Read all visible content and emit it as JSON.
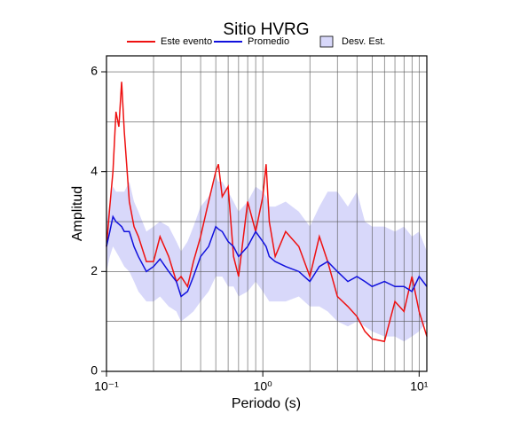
{
  "chart_data": {
    "type": "line",
    "title": "Sitio HVRG",
    "xlabel": "Periodo (s)",
    "ylabel": "Amplitud",
    "xscale": "log",
    "grid": true,
    "legend": "top",
    "xlim": [
      0.1,
      11.2
    ],
    "ylim": [
      0,
      6.32
    ],
    "xticks": [
      {
        "value": 0.1,
        "label": "10⁻¹"
      },
      {
        "value": 1,
        "label": "10⁰"
      },
      {
        "value": 10,
        "label": "10¹"
      }
    ],
    "yticks": [
      0,
      2,
      4,
      6
    ],
    "x": [
      0.1,
      0.105,
      0.11,
      0.115,
      0.12,
      0.125,
      0.13,
      0.14,
      0.15,
      0.16,
      0.18,
      0.2,
      0.22,
      0.25,
      0.28,
      0.3,
      0.33,
      0.36,
      0.4,
      0.45,
      0.5,
      0.52,
      0.55,
      0.6,
      0.65,
      0.7,
      0.8,
      0.9,
      1.0,
      1.05,
      1.1,
      1.2,
      1.4,
      1.7,
      2.0,
      2.3,
      2.6,
      3.0,
      3.5,
      4.0,
      4.5,
      5.0,
      6.0,
      7.0,
      8.0,
      9.0,
      10.0,
      11.2
    ],
    "series": [
      {
        "name": "Este evento",
        "color": "#ee1111",
        "values": [
          2.5,
          3.3,
          4.0,
          5.2,
          4.9,
          5.8,
          4.8,
          3.4,
          2.9,
          2.7,
          2.2,
          2.2,
          2.7,
          2.3,
          1.8,
          1.9,
          1.7,
          2.2,
          2.7,
          3.4,
          4.0,
          4.15,
          3.5,
          3.7,
          2.3,
          1.9,
          3.4,
          2.8,
          3.5,
          4.15,
          3.0,
          2.3,
          2.8,
          2.5,
          1.9,
          2.7,
          2.2,
          1.5,
          1.3,
          1.1,
          0.8,
          0.65,
          0.6,
          1.4,
          1.2,
          1.9,
          1.2,
          0.7
        ]
      },
      {
        "name": "Promedio",
        "color": "#1111dd",
        "values": [
          2.5,
          2.8,
          3.1,
          3.0,
          2.95,
          2.9,
          2.8,
          2.8,
          2.5,
          2.3,
          2.0,
          2.1,
          2.25,
          2.0,
          1.8,
          1.5,
          1.6,
          1.9,
          2.3,
          2.5,
          2.9,
          2.85,
          2.8,
          2.6,
          2.5,
          2.3,
          2.5,
          2.8,
          2.6,
          2.5,
          2.3,
          2.2,
          2.1,
          2.0,
          1.8,
          2.1,
          2.2,
          2.0,
          1.8,
          1.9,
          1.8,
          1.7,
          1.8,
          1.7,
          1.7,
          1.6,
          1.9,
          1.7
        ]
      },
      {
        "name": "Desv. Est.",
        "color": "#d8d8fa",
        "upper": [
          3.0,
          3.4,
          3.7,
          3.6,
          3.6,
          3.6,
          3.6,
          3.8,
          3.4,
          3.2,
          2.8,
          2.9,
          3.0,
          2.9,
          2.6,
          2.4,
          2.6,
          2.9,
          3.3,
          3.5,
          3.9,
          3.8,
          3.8,
          3.6,
          3.4,
          3.2,
          3.4,
          3.7,
          3.6,
          3.5,
          3.3,
          3.3,
          3.4,
          3.2,
          2.9,
          3.3,
          3.6,
          3.6,
          3.3,
          3.6,
          3.0,
          2.9,
          2.9,
          2.8,
          2.9,
          2.7,
          2.8,
          2.4
        ],
        "lower": [
          2.0,
          2.3,
          2.5,
          2.4,
          2.3,
          2.2,
          2.1,
          2.0,
          1.8,
          1.6,
          1.4,
          1.4,
          1.5,
          1.3,
          1.2,
          1.0,
          1.1,
          1.2,
          1.4,
          1.6,
          1.9,
          1.9,
          1.9,
          1.7,
          1.7,
          1.5,
          1.6,
          1.8,
          1.6,
          1.5,
          1.4,
          1.4,
          1.4,
          1.5,
          1.3,
          1.3,
          1.2,
          1.0,
          0.9,
          1.0,
          0.9,
          0.8,
          0.7,
          0.7,
          0.6,
          0.7,
          0.8,
          1.0
        ]
      }
    ]
  }
}
